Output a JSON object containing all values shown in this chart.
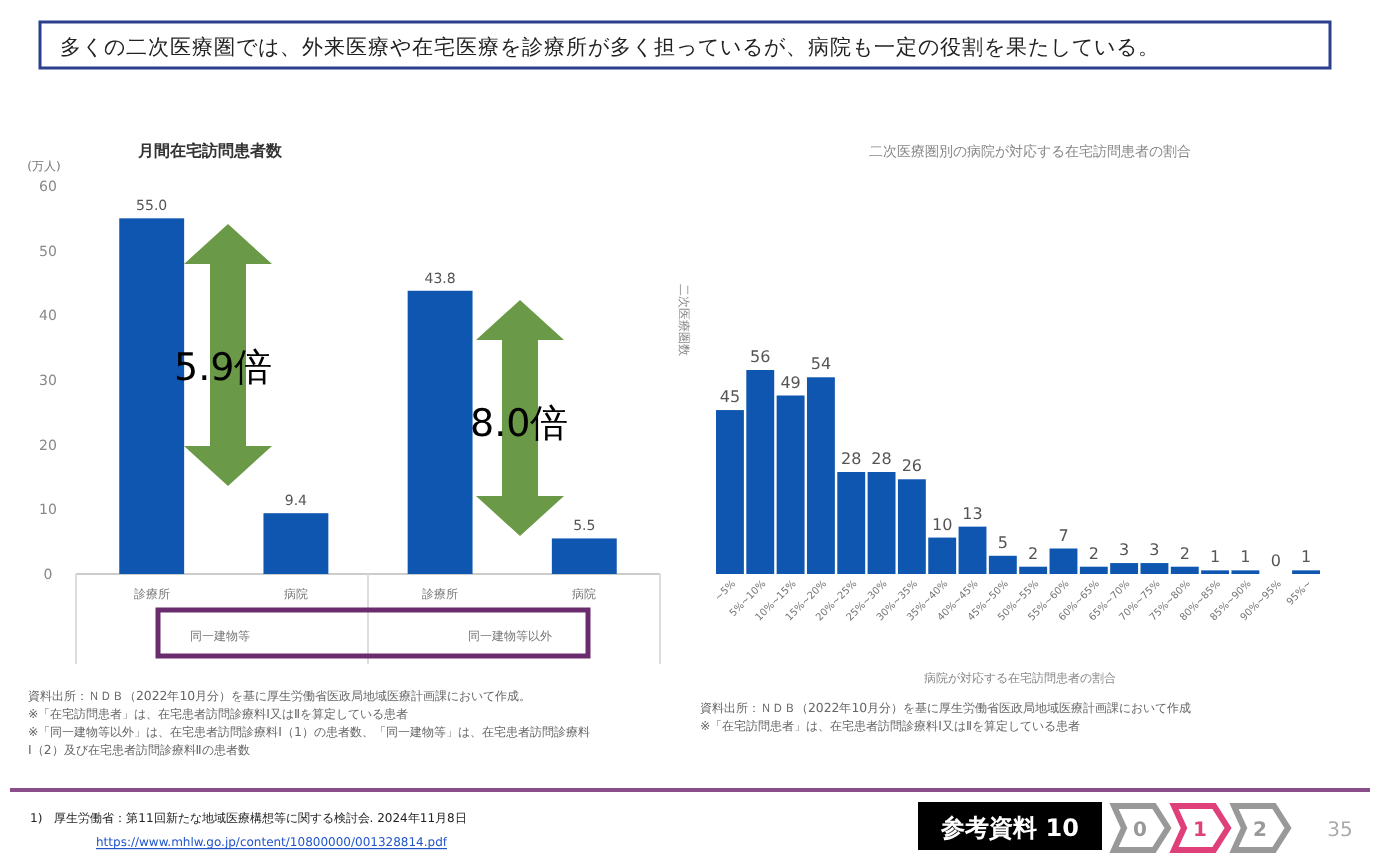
{
  "chart_data": [
    {
      "type": "bar",
      "title": "月間在宅訪問患者数",
      "ylabel": "(万人)",
      "categories": [
        "診療所",
        "病院",
        "診療所",
        "病院"
      ],
      "values": [
        55.0,
        9.4,
        43.8,
        5.5
      ],
      "color": "#0e56b0",
      "ylim": [
        0,
        60
      ],
      "yticks": [
        0,
        10,
        20,
        30,
        40,
        50,
        60
      ],
      "data_labels": true,
      "value_labels": [
        "55.0",
        "9.4",
        "43.8",
        "5.5"
      ],
      "grid": false,
      "annotations": [
        "5.9倍",
        "8.0倍",
        "同一建物等",
        "同一建物等以外",
        "資料出所：ＮＤＢ（2022年10月分）を基に厚生労働省医政局地域医療計画課において作成。",
        "※「在宅訪問患者」は、在宅患者訪問診療料Ⅰ又はⅡを算定している患者",
        "※「同一建物等以外」は、在宅患者訪問診療料Ⅰ（1）の患者数、「同一建物等」は、在宅患者訪問診療料",
        "Ⅰ（2）及び在宅患者訪問診療料Ⅱの患者数"
      ]
    },
    {
      "type": "bar",
      "title": "二次医療圏別の病院が対応する在宅訪問患者の割合",
      "ylabel": "二次医療圏数",
      "xlabel": "病院が対応する在宅訪問患者の割合",
      "categories": [
        "~5%",
        "5%~10%",
        "10%~15%",
        "15%~20%",
        "20%~25%",
        "25%~30%",
        "30%~35%",
        "35%~40%",
        "40%~45%",
        "45%~50%",
        "50%~55%",
        "55%~60%",
        "60%~65%",
        "65%~70%",
        "70%~75%",
        "75%~80%",
        "80%~85%",
        "85%~90%",
        "90%~95%",
        "95%~"
      ],
      "values": [
        45,
        56,
        49,
        54,
        28,
        28,
        26,
        10,
        13,
        5,
        2,
        7,
        2,
        3,
        3,
        2,
        1,
        1,
        0,
        1
      ],
      "color": "#0e56b0",
      "data_labels": true,
      "annotations": [
        "資料出所：ＮＤＢ（2022年10月分）を基に厚生労働省医政局地域医療計画課において作成",
        "※「在宅訪問患者」は、在宅患者訪問診療料Ⅰ又はⅡを算定している患者"
      ]
    },
    {
      "type": "other",
      "annotations": [
        "多くの二次医療圏では、外来医療や在宅医療を診療所が多く担っているが、病院も一定の役割を果たしている。",
        "1)　厚生労働省：第11回新たな地域医療構想等に関する検討会. 2024年11月8日",
        "https://www.mhlw.go.jp/content/10800000/001328814.pdf",
        "参考資料 10",
        "0",
        "1",
        "2",
        "35"
      ]
    }
  ]
}
